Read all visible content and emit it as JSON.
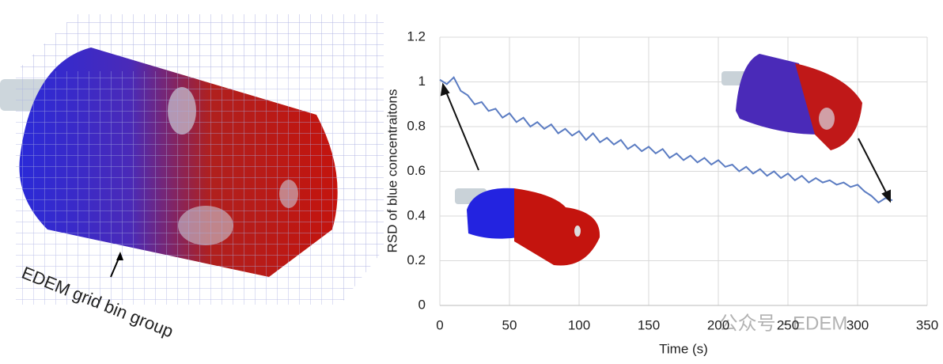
{
  "chart_data": {
    "type": "line",
    "xlabel": "Time (s)",
    "ylabel": "RSD of blue concentraitons",
    "annotation": "EDEM grid bin group",
    "watermark": "公众号 · EDEM",
    "x": [
      0,
      5,
      10,
      15,
      20,
      25,
      30,
      35,
      40,
      45,
      50,
      55,
      60,
      65,
      70,
      75,
      80,
      85,
      90,
      95,
      100,
      105,
      110,
      115,
      120,
      125,
      130,
      135,
      140,
      145,
      150,
      155,
      160,
      165,
      170,
      175,
      180,
      185,
      190,
      195,
      200,
      205,
      210,
      215,
      220,
      225,
      230,
      235,
      240,
      245,
      250,
      255,
      260,
      265,
      270,
      275,
      280,
      285,
      290,
      295,
      300,
      305,
      310,
      315,
      320,
      325
    ],
    "series": [
      {
        "color": "#5b7cc2",
        "values": [
          1.01,
          0.99,
          1.02,
          0.96,
          0.94,
          0.9,
          0.91,
          0.87,
          0.88,
          0.84,
          0.86,
          0.82,
          0.84,
          0.8,
          0.82,
          0.79,
          0.81,
          0.77,
          0.79,
          0.76,
          0.78,
          0.74,
          0.77,
          0.73,
          0.75,
          0.72,
          0.74,
          0.7,
          0.72,
          0.69,
          0.71,
          0.68,
          0.7,
          0.66,
          0.68,
          0.65,
          0.67,
          0.64,
          0.66,
          0.63,
          0.65,
          0.62,
          0.63,
          0.6,
          0.62,
          0.59,
          0.61,
          0.58,
          0.6,
          0.57,
          0.59,
          0.56,
          0.58,
          0.55,
          0.57,
          0.55,
          0.56,
          0.54,
          0.55,
          0.53,
          0.54,
          0.51,
          0.49,
          0.46,
          0.48,
          0.47
        ]
      }
    ],
    "xlim": [
      0,
      350
    ],
    "xticks": [
      0,
      50,
      100,
      150,
      200,
      250,
      300,
      350
    ],
    "ylim": [
      0,
      1.2
    ],
    "yticks": [
      0,
      0.2,
      0.4,
      0.6,
      0.8,
      1,
      1.2
    ],
    "grid": true
  }
}
